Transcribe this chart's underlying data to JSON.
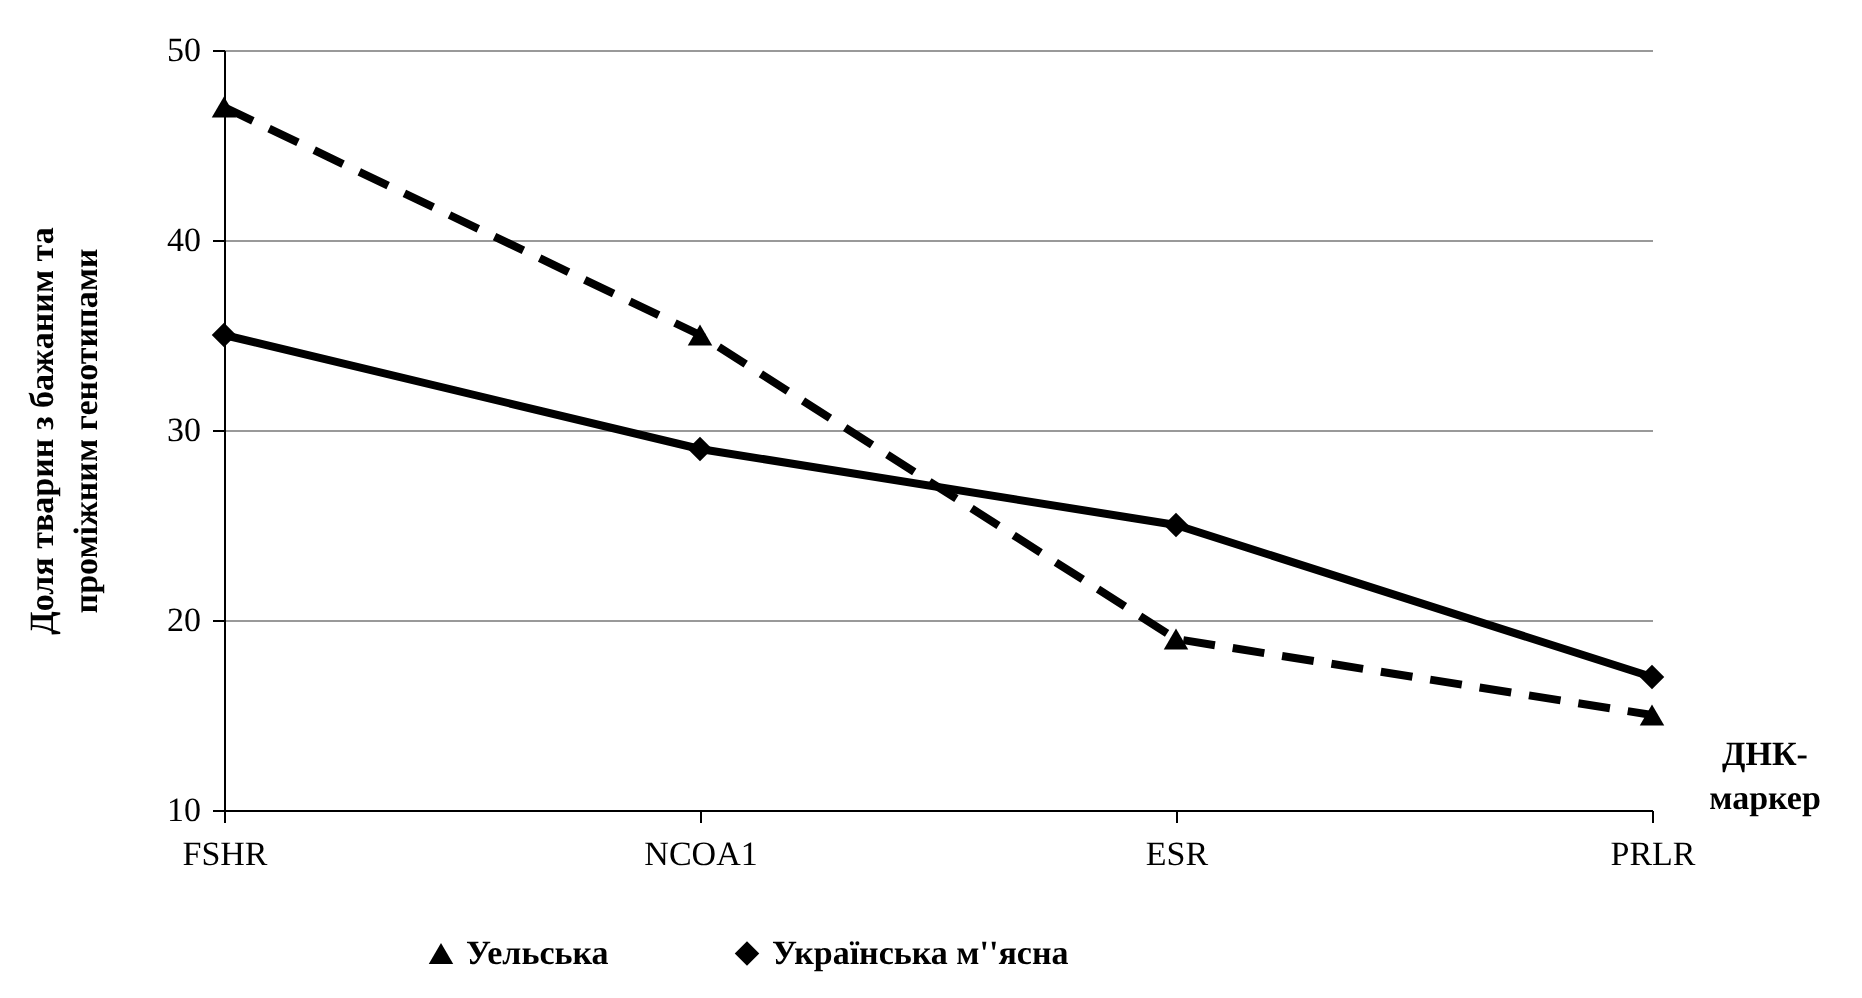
{
  "chart_data": {
    "type": "line",
    "categories": [
      "FSHR",
      "NCOA1",
      "ESR",
      "PRLR"
    ],
    "xlabel": "ДНК-маркер",
    "ylabel": "Доля тварин з бажаним та проміжним генотипами",
    "ylim": [
      10,
      50
    ],
    "yticks": [
      10,
      20,
      30,
      40,
      50
    ],
    "grid": "y",
    "legend": "bottom",
    "series": [
      {
        "name": "Уельська",
        "color": "#000000",
        "marker": "triangle",
        "line_style": "dashed",
        "values": [
          47,
          35,
          19,
          15
        ]
      },
      {
        "name": "Українська м''ясна",
        "color": "#000000",
        "marker": "diamond",
        "line_style": "solid",
        "values": [
          35,
          29,
          25,
          17
        ]
      }
    ]
  }
}
